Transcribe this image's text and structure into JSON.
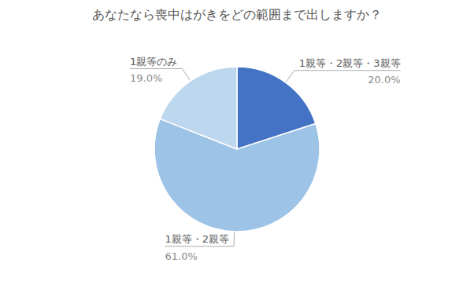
{
  "chart_data": {
    "type": "pie",
    "title": "あなたなら喪中はがきをどの範囲まで出しますか？",
    "categories": [
      "1親等・2親等・3親等",
      "1親等・2親等",
      "1親等のみ"
    ],
    "values": [
      20.0,
      61.0,
      19.0
    ],
    "value_labels": [
      "20.0%",
      "61.0%",
      "19.0%"
    ],
    "colors": [
      "#4472C4",
      "#9DC3E6",
      "#BDD7EE"
    ],
    "data_labels": true
  }
}
